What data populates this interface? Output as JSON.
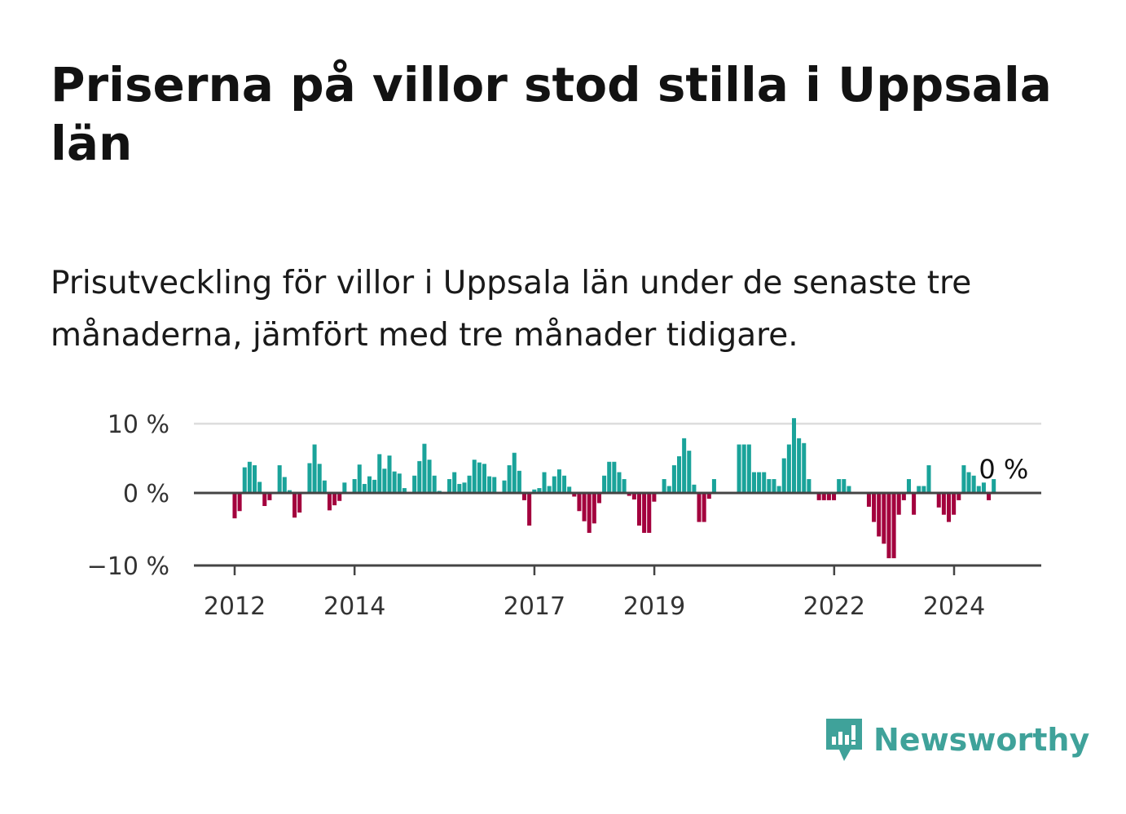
{
  "title": "Priserna på villor stod stilla i Uppsala län",
  "subtitle": "Prisutveckling för villor i Uppsala län under de senaste tre månaderna, jämfört med tre månader tidigare.",
  "colors": {
    "positive": "#1aa39a",
    "negative": "#a3003d",
    "zero_line": "#444444",
    "grid": "#dddddd"
  },
  "brand": {
    "name": "Newsworthy",
    "icon": "newsworthy-chart-bubble-icon",
    "color": "#3fa29a"
  },
  "chart_data": {
    "type": "bar",
    "y_unit": "%",
    "ylim": [
      -10,
      10
    ],
    "y_ticks": [
      {
        "value": 10,
        "label": "10 %"
      },
      {
        "value": 0,
        "label": "0 %"
      },
      {
        "value": -10,
        "label": "−10 %"
      }
    ],
    "x_ticks": [
      {
        "value": 2012,
        "label": "2012"
      },
      {
        "value": 2014,
        "label": "2014"
      },
      {
        "value": 2017,
        "label": "2017"
      },
      {
        "value": 2019,
        "label": "2019"
      },
      {
        "value": 2022,
        "label": "2022"
      },
      {
        "value": 2024,
        "label": "2024"
      }
    ],
    "x_start": 2012.0,
    "x_step": 0.0833,
    "grid": true,
    "annotation": {
      "label": "0 %"
    },
    "values": [
      -3.5,
      -2.5,
      3.7,
      4.5,
      4.0,
      1.6,
      -1.8,
      -1.0,
      0.0,
      4.0,
      2.3,
      0.4,
      -3.4,
      -2.7,
      0.0,
      4.3,
      7.0,
      4.2,
      1.8,
      -2.4,
      -1.7,
      -1.1,
      1.5,
      0.0,
      2.0,
      4.1,
      1.3,
      2.4,
      1.9,
      5.6,
      3.5,
      5.4,
      3.1,
      2.8,
      0.7,
      0.0,
      2.5,
      4.6,
      7.1,
      4.8,
      2.5,
      0.3,
      0.0,
      2.0,
      3.0,
      1.3,
      1.5,
      2.5,
      4.8,
      4.4,
      4.2,
      2.4,
      2.3,
      0.0,
      1.8,
      4.0,
      5.8,
      3.2,
      -1.0,
      -4.5,
      0.5,
      0.7,
      3.0,
      1.0,
      2.4,
      3.4,
      2.5,
      0.9,
      -0.5,
      -2.5,
      -3.9,
      -5.5,
      -4.2,
      -1.4,
      2.5,
      4.5,
      4.5,
      3.0,
      2.0,
      -0.4,
      -0.9,
      -4.5,
      -5.5,
      -5.5,
      -1.2,
      0.0,
      2.0,
      1.0,
      4.0,
      5.3,
      7.9,
      6.1,
      1.2,
      -4.0,
      -4.0,
      -0.8,
      2.0,
      0.0,
      0.0,
      0.0,
      0.0,
      7.0,
      7.0,
      7.0,
      3.0,
      3.0,
      3.0,
      2.0,
      2.0,
      1.0,
      5.0,
      7.0,
      10.8,
      7.9,
      7.2,
      2.0,
      0.0,
      -1.0,
      -1.0,
      -1.0,
      -1.0,
      2.0,
      2.0,
      1.0,
      0.0,
      0.0,
      0.0,
      -1.9,
      -4.0,
      -6.0,
      -7.0,
      -9.0,
      -9.0,
      -3.0,
      -1.0,
      2.0,
      -3.0,
      1.0,
      1.0,
      4.0,
      0.0,
      -2.0,
      -3.0,
      -4.0,
      -3.0,
      -1.0,
      4.0,
      3.0,
      2.5,
      1.0,
      1.5,
      -1.0,
      2.0,
      0.0
    ]
  }
}
